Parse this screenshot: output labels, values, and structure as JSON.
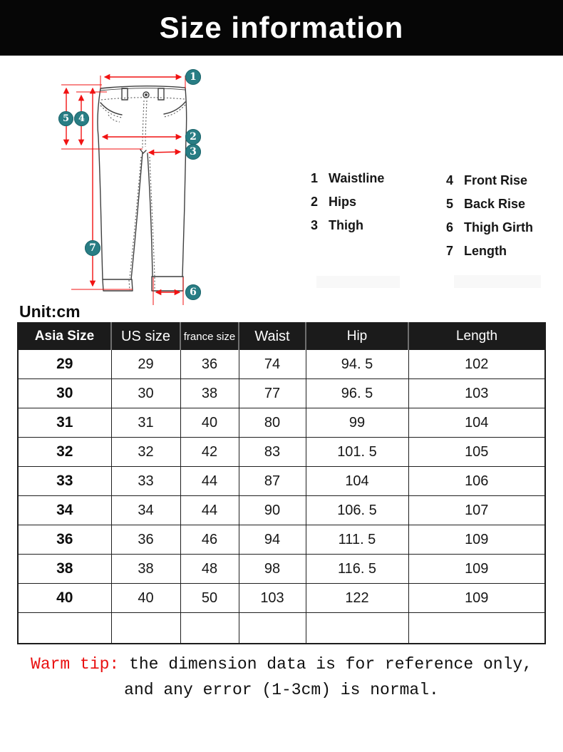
{
  "header": {
    "title": "Size information"
  },
  "diagram": {
    "markers": [
      "1",
      "2",
      "3",
      "4",
      "5",
      "6",
      "7"
    ],
    "legend_left": [
      {
        "num": "1",
        "label": "Waistline"
      },
      {
        "num": "2",
        "label": "Hips"
      },
      {
        "num": "3",
        "label": "Thigh"
      }
    ],
    "legend_right": [
      {
        "num": "4",
        "label": "Front Rise"
      },
      {
        "num": "5",
        "label": "Back Rise"
      },
      {
        "num": "6",
        "label": "Thigh Girth"
      },
      {
        "num": "7",
        "label": "Length"
      }
    ]
  },
  "unit_label": "Unit:cm",
  "table": {
    "columns": [
      "Asia Size",
      "US size",
      "france size",
      "Waist",
      "Hip",
      "Length"
    ],
    "rows": [
      [
        "29",
        "29",
        "36",
        "74",
        "94. 5",
        "102"
      ],
      [
        "30",
        "30",
        "38",
        "77",
        "96. 5",
        "103"
      ],
      [
        "31",
        "31",
        "40",
        "80",
        "99",
        "104"
      ],
      [
        "32",
        "32",
        "42",
        "83",
        "101. 5",
        "105"
      ],
      [
        "33",
        "33",
        "44",
        "87",
        "104",
        "106"
      ],
      [
        "34",
        "34",
        "44",
        "90",
        "106. 5",
        "107"
      ],
      [
        "36",
        "36",
        "46",
        "94",
        "111. 5",
        "109"
      ],
      [
        "38",
        "38",
        "48",
        "98",
        "116. 5",
        "109"
      ],
      [
        "40",
        "40",
        "50",
        "103",
        "122",
        "109"
      ],
      [
        "",
        "",
        "",
        "",
        "",
        ""
      ]
    ]
  },
  "warm_tip": {
    "prefix": "Warm tip:",
    "line1": "the dimension data is for reference only,",
    "line2": "and any error (1-3cm) is normal."
  },
  "colors": {
    "accent_teal": "#287d84",
    "arrow_red": "#f11212",
    "tip_red": "#e90f0f",
    "banner_black": "#060606",
    "table_header_black": "#1b1b1b"
  }
}
